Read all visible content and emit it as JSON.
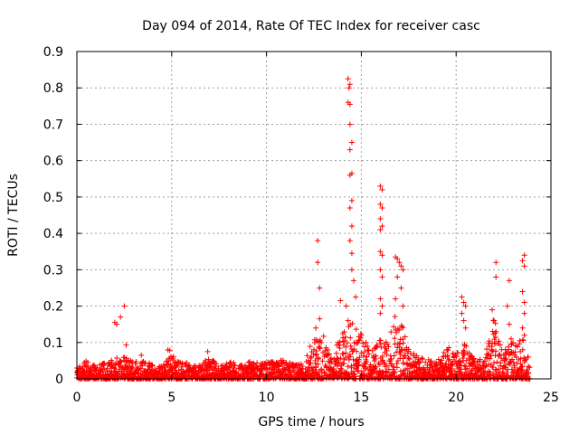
{
  "chart_data": {
    "type": "scatter",
    "title": "Day 094 of 2014, Rate Of TEC Index for receiver casc",
    "xlabel": "GPS time / hours",
    "ylabel": "ROTI / TECUs",
    "xlim": [
      0,
      25
    ],
    "ylim": [
      0,
      0.9
    ],
    "xticks": [
      0,
      5,
      10,
      15,
      20,
      25
    ],
    "yticks": [
      0,
      0.1,
      0.2,
      0.3,
      0.4,
      0.5,
      0.6,
      0.7,
      0.8,
      0.9
    ],
    "xtick_labels": [
      "0",
      "5",
      "10",
      "15",
      "20",
      "25"
    ],
    "ytick_labels": [
      "0",
      "0.1",
      "0.2",
      "0.3",
      "0.4",
      "0.5",
      "0.6",
      "0.7",
      "0.8",
      "0.9"
    ],
    "grid": true,
    "marker": "+",
    "series": [
      {
        "name": "ROTI",
        "color": "#ff0000",
        "notable_points": [
          {
            "x": 2.0,
            "y": 0.155
          },
          {
            "x": 2.1,
            "y": 0.15
          },
          {
            "x": 2.3,
            "y": 0.17
          },
          {
            "x": 2.5,
            "y": 0.2
          },
          {
            "x": 2.6,
            "y": 0.093
          },
          {
            "x": 3.4,
            "y": 0.065
          },
          {
            "x": 4.8,
            "y": 0.08
          },
          {
            "x": 4.9,
            "y": 0.078
          },
          {
            "x": 6.9,
            "y": 0.075
          },
          {
            "x": 12.7,
            "y": 0.38
          },
          {
            "x": 12.7,
            "y": 0.32
          },
          {
            "x": 12.8,
            "y": 0.25
          },
          {
            "x": 12.8,
            "y": 0.165
          },
          {
            "x": 12.6,
            "y": 0.14
          },
          {
            "x": 13.9,
            "y": 0.215
          },
          {
            "x": 14.3,
            "y": 0.825
          },
          {
            "x": 14.4,
            "y": 0.81
          },
          {
            "x": 14.35,
            "y": 0.8
          },
          {
            "x": 14.3,
            "y": 0.76
          },
          {
            "x": 14.4,
            "y": 0.755
          },
          {
            "x": 14.4,
            "y": 0.7
          },
          {
            "x": 14.5,
            "y": 0.65
          },
          {
            "x": 14.4,
            "y": 0.63
          },
          {
            "x": 14.5,
            "y": 0.565
          },
          {
            "x": 14.4,
            "y": 0.56
          },
          {
            "x": 14.5,
            "y": 0.49
          },
          {
            "x": 14.4,
            "y": 0.47
          },
          {
            "x": 14.5,
            "y": 0.42
          },
          {
            "x": 14.4,
            "y": 0.38
          },
          {
            "x": 14.5,
            "y": 0.345
          },
          {
            "x": 14.5,
            "y": 0.3
          },
          {
            "x": 14.6,
            "y": 0.27
          },
          {
            "x": 14.7,
            "y": 0.225
          },
          {
            "x": 14.2,
            "y": 0.2
          },
          {
            "x": 14.3,
            "y": 0.16
          },
          {
            "x": 16.0,
            "y": 0.53
          },
          {
            "x": 16.1,
            "y": 0.52
          },
          {
            "x": 16.0,
            "y": 0.48
          },
          {
            "x": 16.1,
            "y": 0.47
          },
          {
            "x": 16.0,
            "y": 0.44
          },
          {
            "x": 16.1,
            "y": 0.42
          },
          {
            "x": 16.0,
            "y": 0.41
          },
          {
            "x": 16.0,
            "y": 0.35
          },
          {
            "x": 16.1,
            "y": 0.34
          },
          {
            "x": 16.0,
            "y": 0.3
          },
          {
            "x": 16.1,
            "y": 0.28
          },
          {
            "x": 16.0,
            "y": 0.22
          },
          {
            "x": 16.1,
            "y": 0.2
          },
          {
            "x": 16.0,
            "y": 0.18
          },
          {
            "x": 16.8,
            "y": 0.335
          },
          {
            "x": 16.9,
            "y": 0.33
          },
          {
            "x": 17.0,
            "y": 0.32
          },
          {
            "x": 17.1,
            "y": 0.31
          },
          {
            "x": 17.2,
            "y": 0.3
          },
          {
            "x": 16.9,
            "y": 0.28
          },
          {
            "x": 17.1,
            "y": 0.25
          },
          {
            "x": 16.8,
            "y": 0.22
          },
          {
            "x": 17.2,
            "y": 0.2
          },
          {
            "x": 20.3,
            "y": 0.225
          },
          {
            "x": 20.4,
            "y": 0.21
          },
          {
            "x": 20.5,
            "y": 0.2
          },
          {
            "x": 20.3,
            "y": 0.18
          },
          {
            "x": 20.4,
            "y": 0.16
          },
          {
            "x": 20.5,
            "y": 0.14
          },
          {
            "x": 22.1,
            "y": 0.32
          },
          {
            "x": 22.1,
            "y": 0.28
          },
          {
            "x": 21.9,
            "y": 0.19
          },
          {
            "x": 22.0,
            "y": 0.16
          },
          {
            "x": 22.1,
            "y": 0.13
          },
          {
            "x": 22.8,
            "y": 0.27
          },
          {
            "x": 22.7,
            "y": 0.2
          },
          {
            "x": 22.8,
            "y": 0.15
          },
          {
            "x": 22.9,
            "y": 0.11
          },
          {
            "x": 23.6,
            "y": 0.34
          },
          {
            "x": 23.5,
            "y": 0.325
          },
          {
            "x": 23.6,
            "y": 0.31
          },
          {
            "x": 23.5,
            "y": 0.24
          },
          {
            "x": 23.6,
            "y": 0.21
          },
          {
            "x": 23.6,
            "y": 0.18
          },
          {
            "x": 23.5,
            "y": 0.14
          },
          {
            "x": 23.6,
            "y": 0.12
          }
        ],
        "envelope": {
          "x": [
            0,
            0.5,
            1,
            1.5,
            2,
            2.5,
            3,
            3.5,
            4,
            4.5,
            5,
            5.5,
            6,
            6.5,
            7,
            7.5,
            8,
            8.5,
            9,
            9.5,
            10,
            10.5,
            11,
            11.5,
            12,
            12.5,
            13,
            13.5,
            14,
            14.5,
            15,
            15.5,
            16,
            16.5,
            17,
            17.5,
            18,
            18.5,
            19,
            19.5,
            20,
            20.5,
            21,
            21.5,
            22,
            22.5,
            23,
            23.5,
            23.9
          ],
          "y_max": [
            0.03,
            0.05,
            0.035,
            0.045,
            0.06,
            0.06,
            0.055,
            0.05,
            0.04,
            0.04,
            0.07,
            0.045,
            0.045,
            0.04,
            0.06,
            0.04,
            0.045,
            0.05,
            0.05,
            0.045,
            0.045,
            0.05,
            0.055,
            0.04,
            0.045,
            0.12,
            0.12,
            0.07,
            0.15,
            0.16,
            0.13,
            0.07,
            0.12,
            0.15,
            0.2,
            0.08,
            0.06,
            0.06,
            0.05,
            0.09,
            0.08,
            0.1,
            0.05,
            0.06,
            0.18,
            0.08,
            0.1,
            0.12,
            0.04
          ]
        }
      }
    ]
  }
}
